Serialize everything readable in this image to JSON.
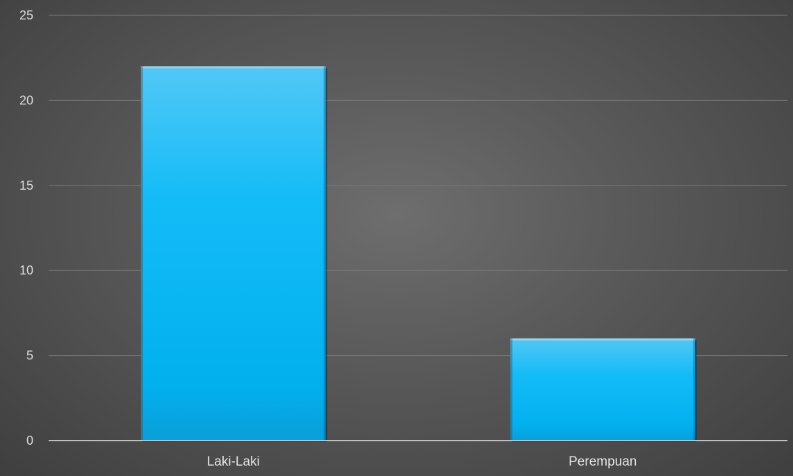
{
  "chart_data": {
    "type": "bar",
    "categories": [
      "Laki-Laki",
      "Perempuan"
    ],
    "values": [
      22,
      6
    ],
    "ylim": [
      0,
      25
    ],
    "yticks": [
      0,
      5,
      10,
      15,
      20,
      25
    ],
    "grid": true,
    "bar_color": "#0fb8f2",
    "background_color": "#595959"
  }
}
